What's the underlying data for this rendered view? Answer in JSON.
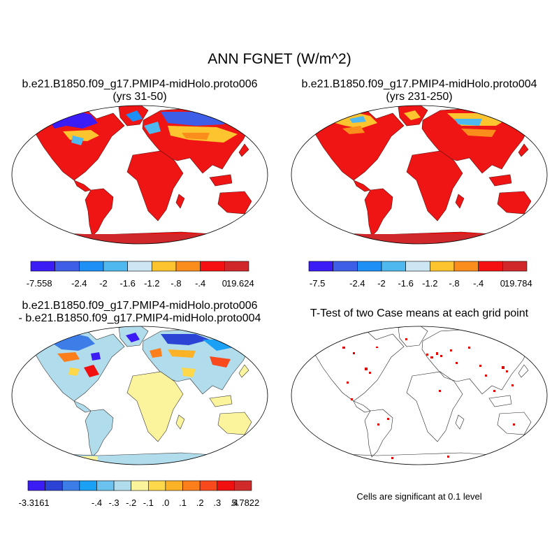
{
  "title": "ANN FGNET (W/m^2)",
  "panels": [
    {
      "title_line1": "b.e21.B1850.f09_g17.PMIP4-midHolo.proto006",
      "title_line2": "(yrs 31-50)"
    },
    {
      "title_line1": "b.e21.B1850.f09_g17.PMIP4-midHolo.proto004",
      "title_line2": "(yrs 231-250)"
    },
    {
      "title_line1": "b.e21.B1850.f09_g17.PMIP4-midHolo.proto006",
      "title_line2": "- b.e21.B1850.f09_g17.PMIP4-midHolo.proto004"
    },
    {
      "title_line1": "T-Test of two Case means at each grid point",
      "title_line2": ""
    }
  ],
  "colorbars": [
    {
      "colors": [
        "#3b1cf5",
        "#3f5ee8",
        "#1e8ff5",
        "#4fb9ef",
        "#cde6f4",
        "#fcc52f",
        "#fb8d1c",
        "#f51111",
        "#d0282a"
      ],
      "labels": [
        "-7.558",
        "-2.4",
        "-2",
        "-1.6",
        "-1.2",
        "-.8",
        "-.4",
        "0",
        "19.624"
      ]
    },
    {
      "colors": [
        "#3b1cf5",
        "#3f5ee8",
        "#1e8ff5",
        "#4fb9ef",
        "#cde6f4",
        "#fcc52f",
        "#fb8d1c",
        "#f51111",
        "#d0282a"
      ],
      "labels": [
        "-7.5",
        "-2.4",
        "-2",
        "-1.6",
        "-1.2",
        "-.8",
        "-.4",
        "0",
        "19.784"
      ]
    },
    {
      "colors": [
        "#3b1cf5",
        "#2c44d6",
        "#3d7de8",
        "#1aa0f5",
        "#6bc2ef",
        "#b1dcec",
        "#fbf49c",
        "#fcd84a",
        "#fcb226",
        "#fc7f1c",
        "#f84a1c",
        "#f01010",
        "#d02a2a"
      ],
      "labels": [
        "-3.3161",
        "-.4",
        "-.3",
        "-.2",
        "-.1",
        ".0",
        ".1",
        ".2",
        ".3",
        ".4",
        "5.7822"
      ]
    }
  ],
  "significance_note": "Cells are significant at 0.1 level"
}
